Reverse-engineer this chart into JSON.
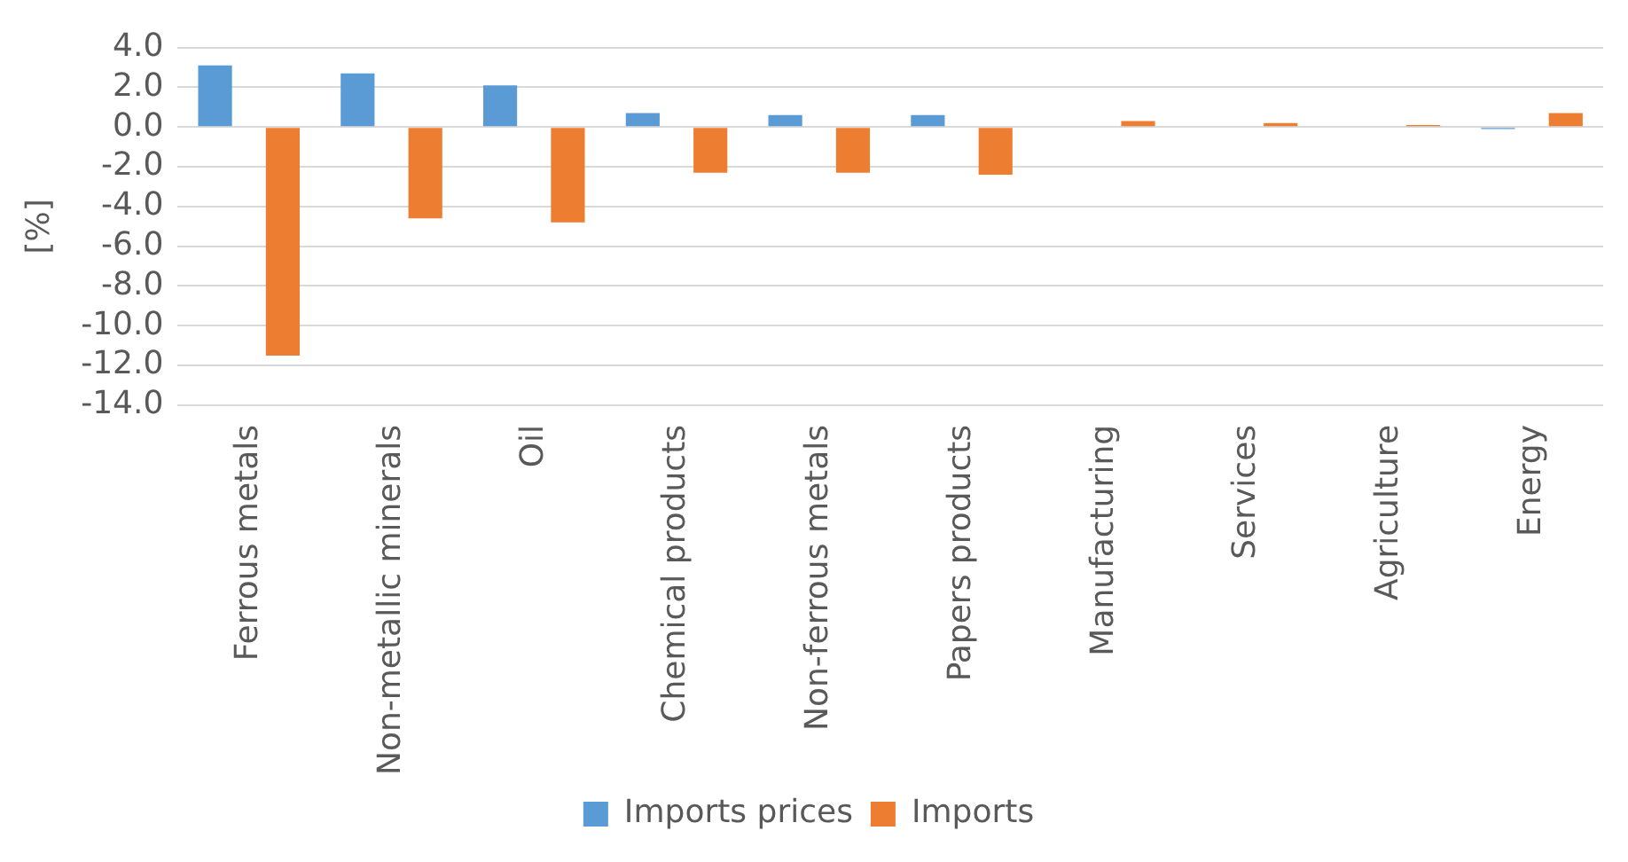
{
  "chart_data": {
    "type": "bar",
    "ylabel": "[%]",
    "categories": [
      "Ferrous metals",
      "Non-metallic minerals",
      "Oil",
      "Chemical products",
      "Non-ferrous metals",
      "Papers products",
      "Manufacturing",
      "Services",
      "Agriculture",
      "Energy"
    ],
    "series": [
      {
        "name": "Imports prices",
        "color": "#5b9bd5",
        "values": [
          3.1,
          2.7,
          2.1,
          0.7,
          0.6,
          0.6,
          0,
          0,
          0,
          -0.1
        ]
      },
      {
        "name": "Imports",
        "color": "#ed7d31",
        "values": [
          -11.5,
          -4.6,
          -4.8,
          -2.3,
          -2.3,
          -2.4,
          0.3,
          0.2,
          0.1,
          0.7
        ]
      }
    ],
    "ylim": [
      -14,
      4
    ],
    "yticks": [
      {
        "value": -14,
        "label": "-14.0"
      },
      {
        "value": -12,
        "label": "-12.0"
      },
      {
        "value": -10,
        "label": "-10.0"
      },
      {
        "value": -8,
        "label": "-8.0"
      },
      {
        "value": -6,
        "label": "-6.0"
      },
      {
        "value": -4,
        "label": "-4.0"
      },
      {
        "value": -2,
        "label": "-2.0"
      },
      {
        "value": 0,
        "label": "0.0"
      },
      {
        "value": 2,
        "label": "2.0"
      },
      {
        "value": 4,
        "label": "4.0"
      }
    ],
    "grid": "y",
    "legend": "bottom"
  }
}
